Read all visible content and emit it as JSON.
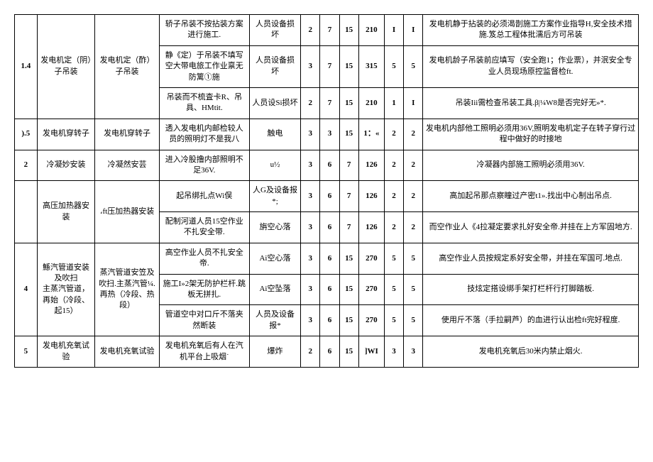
{
  "table": {
    "columns": [
      {
        "key": "num",
        "class": "col-num"
      },
      {
        "key": "name",
        "class": "col-name"
      },
      {
        "key": "method",
        "class": "col-method"
      },
      {
        "key": "risk",
        "class": "col-risk"
      },
      {
        "key": "hazard",
        "class": "col-hazard"
      },
      {
        "key": "n1",
        "class": "col-n1"
      },
      {
        "key": "n2",
        "class": "col-n2"
      },
      {
        "key": "n3",
        "class": "col-n3"
      },
      {
        "key": "n4",
        "class": "col-n4"
      },
      {
        "key": "n5",
        "class": "col-n5"
      },
      {
        "key": "n6",
        "class": "col-n6"
      },
      {
        "key": "measure",
        "class": "col-measure"
      }
    ],
    "rows": [
      {
        "num": "1.4",
        "num_rowspan": 3,
        "name": "发电机定（阴）子吊装",
        "name_rowspan": 3,
        "method": "发电机定（酢）子吊装",
        "method_rowspan": 3,
        "risk": "轿子吊装不按拈装方案进行施工.",
        "hazard": "人员设备损坏",
        "n1": "2",
        "n2": "7",
        "n3": "15",
        "n4": "210",
        "n5": "I",
        "n6": "I",
        "measure": "发电机静于拈装的必须渴剒施工方案作业指导H,安全技术措施.笈总工程体批濡后方可吊装"
      },
      {
        "risk": "静《定）于吊装不填写空大带电旅工作业禀无防篱①施",
        "hazard": "人员设备损坏",
        "n1": "3",
        "n2": "7",
        "n3": "15",
        "n4": "315",
        "n5": "5",
        "n6": "5",
        "measure": "发电机龄子吊装前应填写（安全跑1；作业票），并泯安全专业人员现场原控监督检ft."
      },
      {
        "risk": "吊装而不梳査卡R、吊具、HMtit.",
        "hazard": "人员设Si损坏",
        "n1": "2",
        "n2": "7",
        "n3": "15",
        "n4": "210",
        "n5": "1",
        "n6": "I",
        "measure": "吊装Iii需检查吊装工具.β|¼W8是否完好无»*."
      },
      {
        "num": ").5",
        "name": "发电机穿转子",
        "method": "发电机穿转子",
        "risk": "透入发电机内邮检较人员的照明灯不是我八",
        "hazard": "触电",
        "n1": "3",
        "n2": "3",
        "n3": "15",
        "n4": "1：«",
        "n5": "2",
        "n6": "2",
        "measure": "发电机内部他工照明必须用36V,照明发电机定子在转子穿行过程中做好的时接地"
      },
      {
        "num": "2",
        "name": "冷凝妙安装",
        "method": "冷凝然安芸",
        "risk": "进入冷股撸内部照明不足36V.",
        "hazard": "u½",
        "n1": "3",
        "n2": "6",
        "n3": "7",
        "n4": "126",
        "n5": "2",
        "n6": "2",
        "measure": "冷凝器内部施工照明必须用36V."
      },
      {
        "num": "",
        "num_rowspan": 2,
        "name": "高压加热器安装",
        "name_rowspan": 2,
        "method": "،ft压加热器安装",
        "method_rowspan": 2,
        "risk": "起吊绑扎点Wi俣",
        "hazard": "人G及设备报*;",
        "n1": "3",
        "n2": "6",
        "n3": "7",
        "n4": "126",
        "n5": "2",
        "n6": "2",
        "measure": "高加起吊那点察瞳过产密t1».找出中心制出吊点."
      },
      {
        "risk": "配制河道人员15空作业不扎安全带.",
        "hazard": "旃空心落",
        "n1": "3",
        "n2": "6",
        "n3": "7",
        "n4": "126",
        "n5": "2",
        "n6": "2",
        "measure": "而空作业人《4拉凝定要求扎好安全帝.并挂在上方军固地方."
      },
      {
        "num": "4",
        "num_rowspan": 3,
        "name": "鯀汽管道安装及吹扫\n主蒸汽管道，再始（冷段、起15）",
        "name_rowspan": 3,
        "method": "蒸汽管道安笠及吹扫.主蒸汽管¼.再热（冷段、热段）",
        "method_rowspan": 3,
        "risk": "高空作业人员不扎安全帝.",
        "hazard": "Ai空心落",
        "n1": "3",
        "n2": "6",
        "n3": "15",
        "n4": "270",
        "n5": "5",
        "n6": "5",
        "measure": "高空作业人员按规定系好安全带，并挂在军国可.地点."
      },
      {
        "risk": "施工I»2架无防护栏杆.跳板无拼扎.",
        "hazard": "Ai空坠落",
        "n1": "3",
        "n2": "6",
        "n3": "15",
        "n4": "270",
        "n5": "5",
        "n6": "5",
        "measure": "技炫定搭设绑手架打栏杆行打脚踏板."
      },
      {
        "risk": "管道空中对口斤不落夹然断装",
        "hazard": "人员及设备报*",
        "n1": "3",
        "n2": "6",
        "n3": "15",
        "n4": "270",
        "n5": "5",
        "n6": "5",
        "measure": "使用斤不落（手拉嗣芦）的血进行认出检ft完好程度."
      },
      {
        "num": "5",
        "name": "发电机充氧试验",
        "method": "发电机充氧试验",
        "risk": "发电机充氧后有人在汽机平台上吸烟˙",
        "hazard": "爆炸",
        "n1": "2",
        "n2": "6",
        "n3": "15",
        "n4": "]WI",
        "n5": "3",
        "n6": "3",
        "measure": "发电机充氧后30米内禁止烟火."
      }
    ]
  }
}
